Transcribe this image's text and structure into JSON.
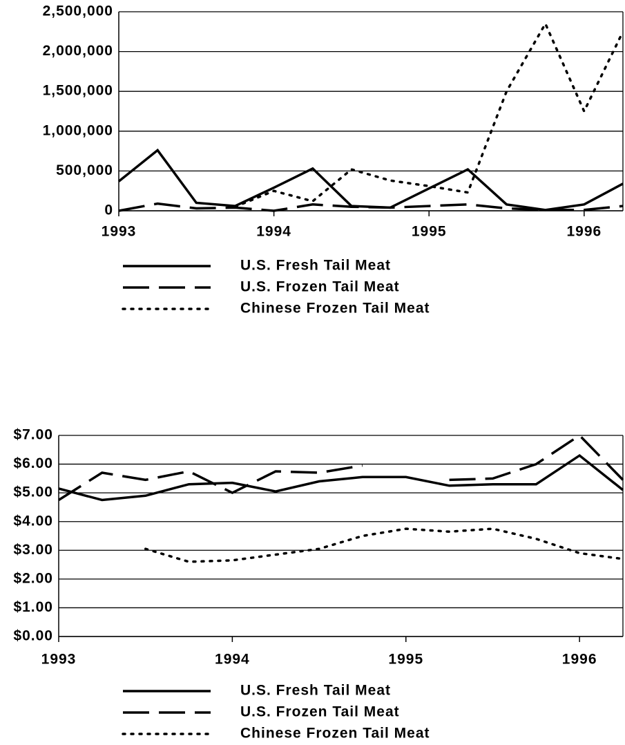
{
  "chart_data": [
    {
      "type": "line",
      "x": [
        1993,
        1993.25,
        1993.5,
        1993.75,
        1994,
        1994.25,
        1994.5,
        1994.75,
        1995,
        1995.25,
        1995.5,
        1995.75,
        1996,
        1996.25
      ],
      "series": [
        {
          "name": "U.S. Fresh Tail Meat",
          "color": "#000000",
          "dash": "solid",
          "values": [
            370000,
            760000,
            100000,
            60000,
            290000,
            530000,
            60000,
            40000,
            280000,
            520000,
            80000,
            10000,
            80000,
            340000
          ]
        },
        {
          "name": "U.S. Frozen Tail Meat",
          "color": "#000000",
          "dash": "dashed",
          "values": [
            0,
            90000,
            30000,
            40000,
            0,
            80000,
            50000,
            40000,
            60000,
            80000,
            30000,
            10000,
            10000,
            60000
          ]
        },
        {
          "name": "Chinese Frozen Tail Meat",
          "color": "#000000",
          "dash": "dotted",
          "values": [
            null,
            null,
            null,
            50000,
            250000,
            120000,
            520000,
            380000,
            310000,
            230000,
            1500000,
            2350000,
            1250000,
            2250000
          ]
        }
      ],
      "xlim": [
        1993,
        1996.25
      ],
      "xticks": [
        1993,
        1994,
        1995,
        1996
      ],
      "ylim": [
        0,
        2500000
      ],
      "yticks": [
        0,
        {
          "value": 500000,
          "label": "500,000"
        },
        {
          "value": 1000000,
          "label": "1,000,000"
        },
        {
          "value": 1500000,
          "label": "1,500,000"
        },
        {
          "value": 2000000,
          "label": "2,000,000"
        },
        {
          "value": 2500000,
          "label": "2,500,000"
        }
      ],
      "grid": true,
      "legend": "bottom"
    },
    {
      "type": "line",
      "x": [
        1993,
        1993.25,
        1993.5,
        1993.75,
        1994,
        1994.25,
        1994.5,
        1994.75,
        1995,
        1995.25,
        1995.5,
        1995.75,
        1996,
        1996.25
      ],
      "series": [
        {
          "name": "U.S. Fresh Tail Meat",
          "color": "#000000",
          "dash": "solid",
          "values": [
            5.15,
            4.75,
            4.9,
            5.3,
            5.35,
            5.05,
            5.4,
            5.55,
            5.55,
            5.25,
            5.3,
            5.3,
            6.3,
            5.1
          ]
        },
        {
          "name": "U.S. Frozen Tail Meat",
          "color": "#000000",
          "dash": "dashed",
          "values": [
            4.75,
            5.7,
            5.45,
            5.75,
            5.0,
            5.75,
            5.7,
            5.95,
            null,
            5.45,
            5.5,
            6.0,
            7.0,
            5.45
          ]
        },
        {
          "name": "Chinese Frozen Tail Meat",
          "color": "#000000",
          "dash": "dotted",
          "values": [
            null,
            null,
            3.05,
            2.6,
            2.65,
            2.85,
            3.05,
            3.5,
            3.75,
            3.65,
            3.75,
            3.4,
            2.9,
            2.7
          ]
        }
      ],
      "xlim": [
        1993,
        1996.25
      ],
      "xticks": [
        1993,
        1994,
        1995,
        1996
      ],
      "ylim": [
        0,
        7
      ],
      "yticks": [
        {
          "value": 0,
          "label": "$0.00"
        },
        {
          "value": 1,
          "label": "$1.00"
        },
        {
          "value": 2,
          "label": "$2.00"
        },
        {
          "value": 3,
          "label": "$3.00"
        },
        {
          "value": 4,
          "label": "$4.00"
        },
        {
          "value": 5,
          "label": "$5.00"
        },
        {
          "value": 6,
          "label": "$6.00"
        },
        {
          "value": 7,
          "label": "$7.00"
        }
      ],
      "grid": true,
      "legend": "bottom"
    }
  ]
}
